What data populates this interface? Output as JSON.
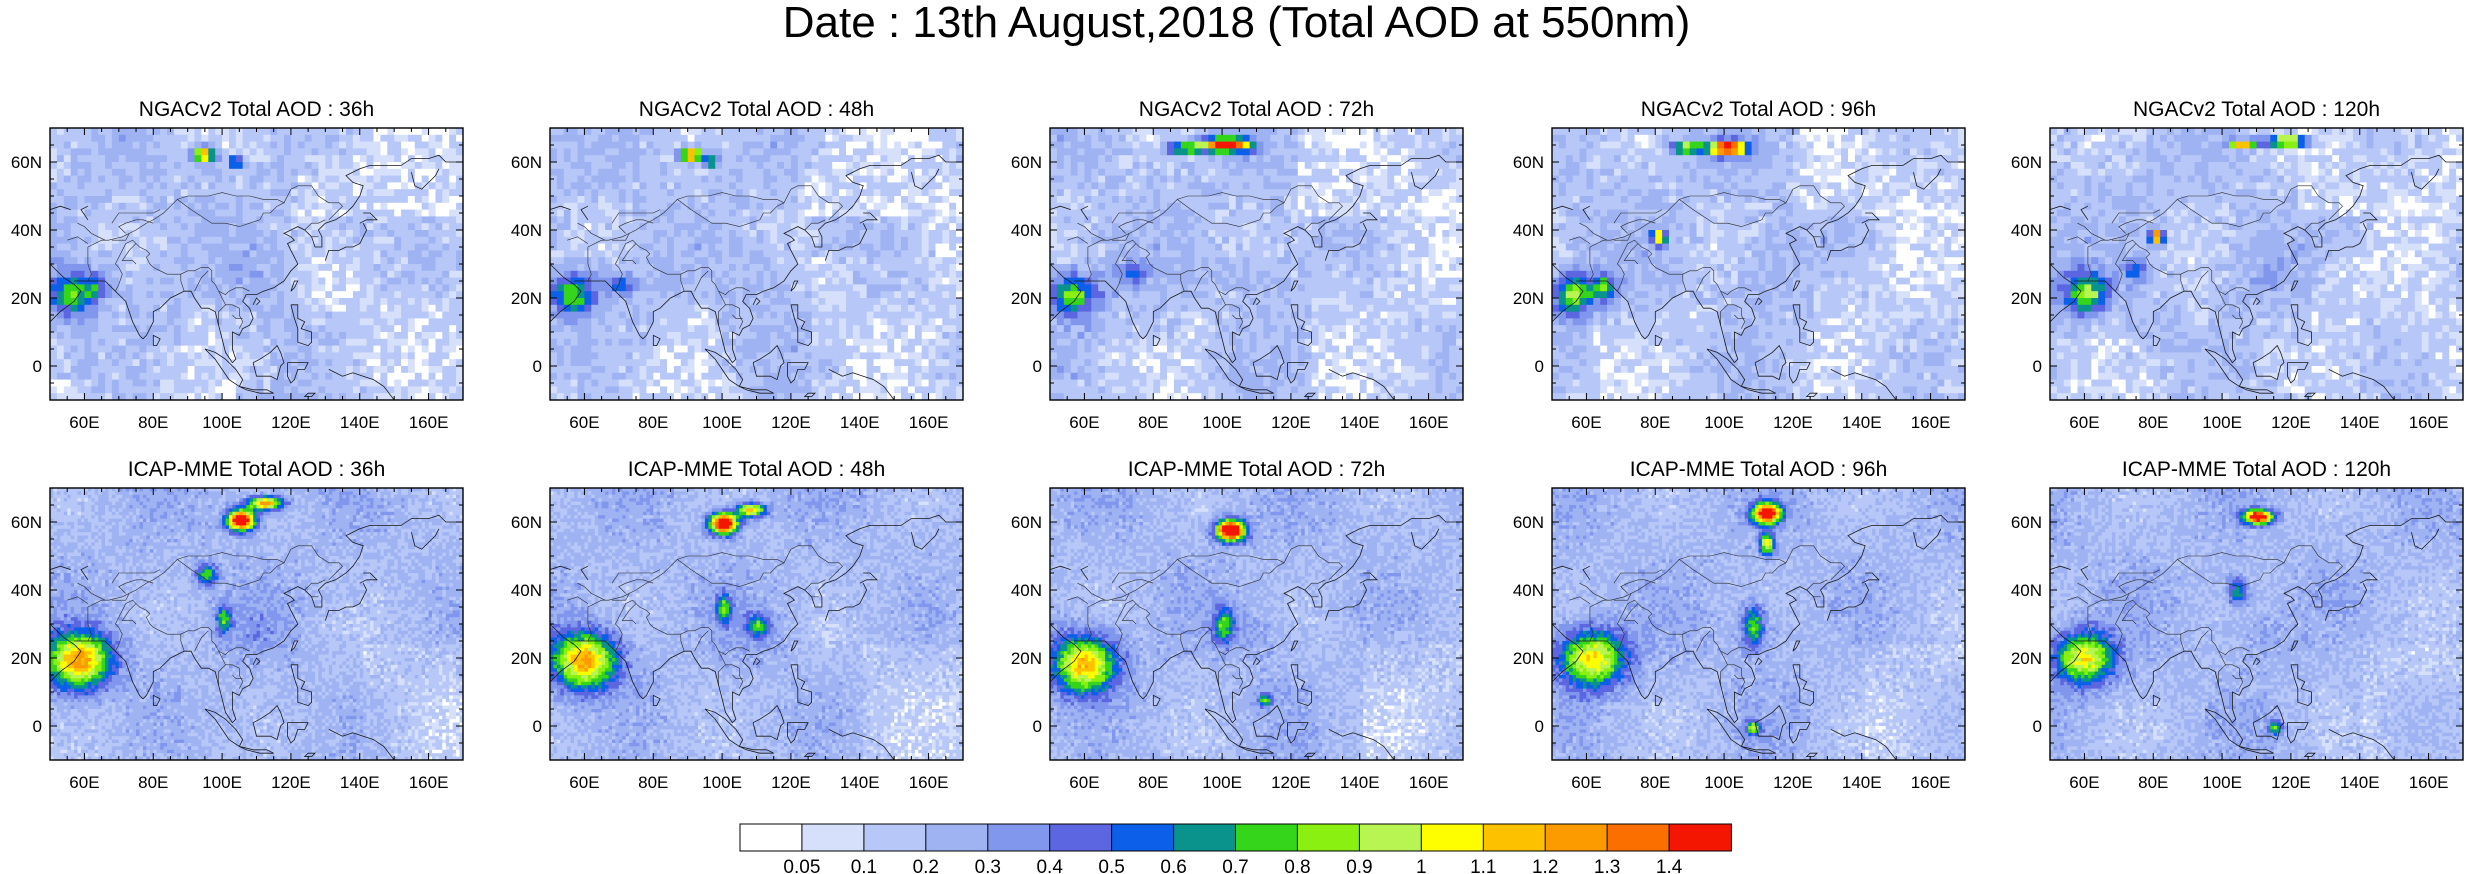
{
  "title": "Date : 13th August,2018 (Total AOD at 550nm)",
  "panels": [
    {
      "title": "NGACv2 Total AOD : 36h",
      "model": "NGACv2",
      "lead": "36h"
    },
    {
      "title": "NGACv2 Total AOD : 48h",
      "model": "NGACv2",
      "lead": "48h"
    },
    {
      "title": "NGACv2 Total AOD : 72h",
      "model": "NGACv2",
      "lead": "72h"
    },
    {
      "title": "NGACv2 Total AOD : 96h",
      "model": "NGACv2",
      "lead": "96h"
    },
    {
      "title": "NGACv2 Total AOD : 120h",
      "model": "NGACv2",
      "lead": "120h"
    },
    {
      "title": "ICAP-MME Total AOD : 36h",
      "model": "ICAP-MME",
      "lead": "36h"
    },
    {
      "title": "ICAP-MME Total AOD : 48h",
      "model": "ICAP-MME",
      "lead": "48h"
    },
    {
      "title": "ICAP-MME Total AOD : 72h",
      "model": "ICAP-MME",
      "lead": "72h"
    },
    {
      "title": "ICAP-MME Total AOD : 96h",
      "model": "ICAP-MME",
      "lead": "96h"
    },
    {
      "title": "ICAP-MME Total AOD : 120h",
      "model": "ICAP-MME",
      "lead": "120h"
    }
  ],
  "map": {
    "lon_range": [
      50,
      170
    ],
    "lat_range": [
      -10,
      70
    ],
    "lon_ticks": [
      "60E",
      "80E",
      "100E",
      "120E",
      "140E",
      "160E"
    ],
    "lat_ticks": [
      "60N",
      "40N",
      "20N",
      "0"
    ]
  },
  "colorbar": {
    "labels": [
      "0.05",
      "0.1",
      "0.2",
      "0.3",
      "0.4",
      "0.5",
      "0.6",
      "0.7",
      "0.8",
      "0.9",
      "1",
      "1.1",
      "1.2",
      "1.3",
      "1.4"
    ],
    "colors": [
      "#ffffff",
      "#d6e0fb",
      "#b7c7f7",
      "#9fb3f3",
      "#8197ed",
      "#5b66e0",
      "#0b5fe8",
      "#0a928c",
      "#35d51b",
      "#8af011",
      "#b9f552",
      "#fffe00",
      "#fdc100",
      "#fc9b00",
      "#fb6f00",
      "#f41600"
    ]
  }
}
